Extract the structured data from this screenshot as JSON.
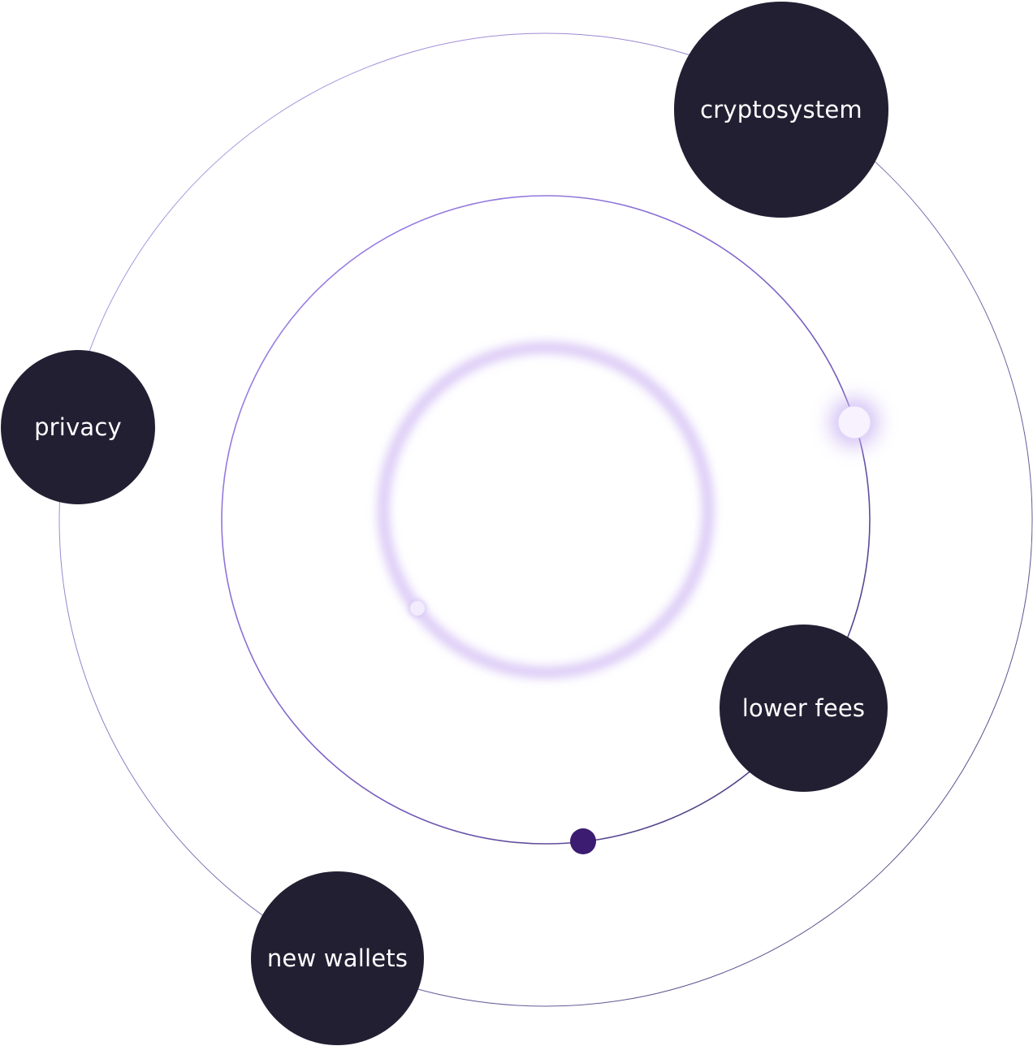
{
  "colors": {
    "node_fill": "#231f33",
    "node_text": "#ffffff",
    "orbit_light": "#9a7fe6",
    "orbit_dark": "#3f3366",
    "glow": "#c9b2f2",
    "dot_dark": "#3b1c70",
    "dot_light": "#f4eefd"
  },
  "nodes": [
    {
      "label": "cryptosystem"
    },
    {
      "label": "privacy"
    },
    {
      "label": "lower fees"
    },
    {
      "label": "new wallets"
    }
  ]
}
